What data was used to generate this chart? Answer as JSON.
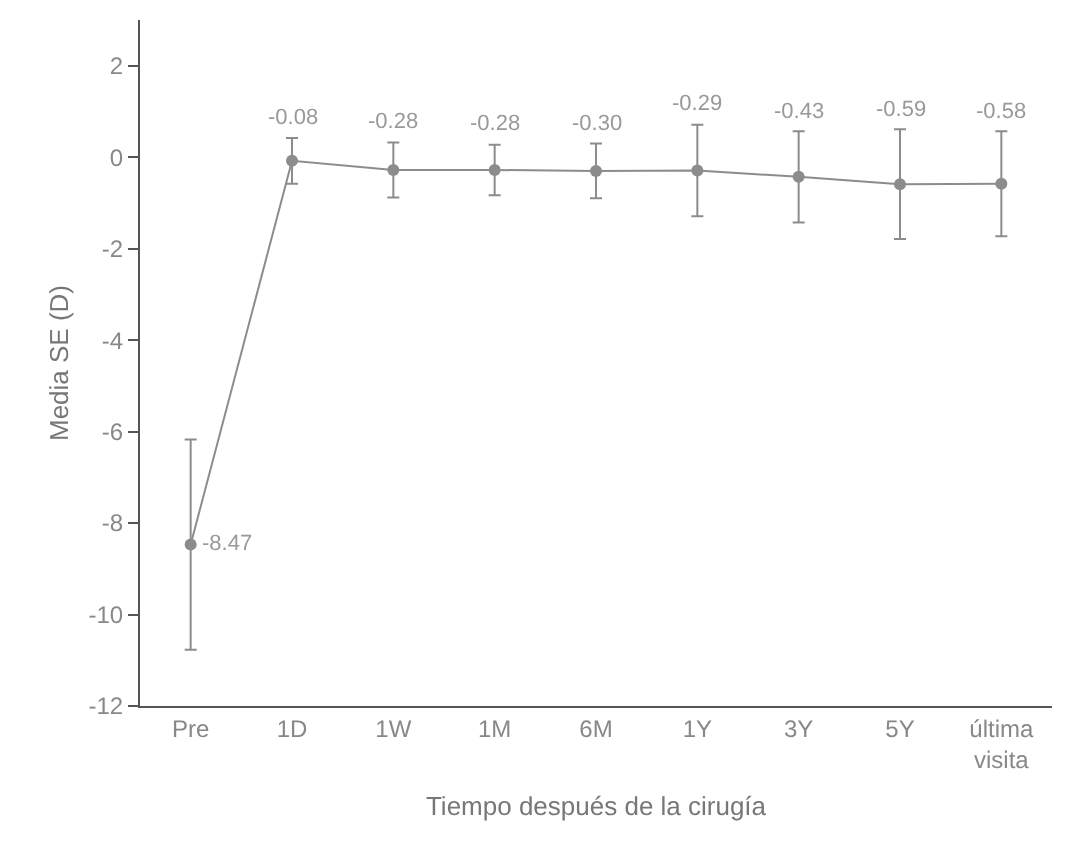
{
  "chart_data": {
    "type": "line",
    "xlabel": "Tiempo después de la cirugía",
    "ylabel": "Media SE (D)",
    "categories": [
      "Pre",
      "1D",
      "1W",
      "1M",
      "6M",
      "1Y",
      "3Y",
      "5Y",
      "última visita"
    ],
    "series": [
      {
        "color": "#8c8c8c",
        "values": [
          -8.47,
          -0.08,
          -0.28,
          -0.28,
          -0.3,
          -0.29,
          -0.43,
          -0.59,
          -0.58
        ],
        "errors": [
          2.3,
          0.5,
          0.6,
          0.55,
          0.6,
          1.0,
          1.0,
          1.2,
          1.15
        ],
        "value_labels": [
          "-8.47",
          "-0.08",
          "-0.28",
          "-0.28",
          "-0.30",
          "-0.29",
          "-0.43",
          "-0.59",
          "-0.58"
        ]
      }
    ],
    "ylim": [
      -12,
      3
    ],
    "yticks": [
      -12,
      -10,
      -8,
      -6,
      -4,
      -2,
      0,
      2
    ],
    "grid": false,
    "marker": "circle",
    "line_style": "solid"
  }
}
